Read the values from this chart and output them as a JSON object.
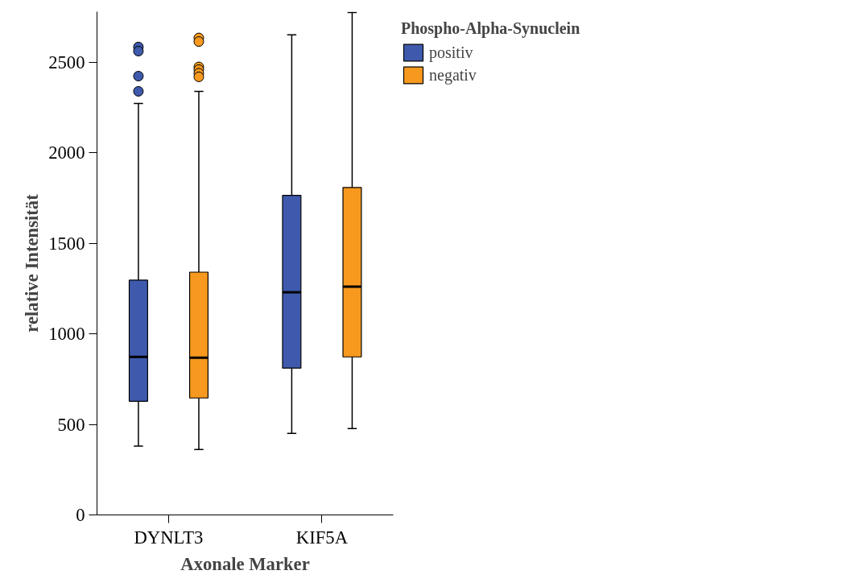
{
  "chart_data": {
    "type": "box",
    "xlabel": "Axonale Marker",
    "ylabel": "relative Intensität",
    "legend_title": "Phospho-Alpha-Synuclein",
    "categories": [
      "DYNLT3",
      "KIF5A"
    ],
    "ylim": [
      0,
      2780
    ],
    "yticks": [
      0,
      500,
      1000,
      1500,
      2000,
      2500
    ],
    "grid": false,
    "legend": "top right",
    "series": [
      {
        "name": "positiv",
        "color": "#3f5aad",
        "boxes": [
          {
            "low": 380,
            "q1": 628,
            "median": 873,
            "q3": 1297,
            "high": 2273,
            "outliers": [
              2585,
              2562,
              2424,
              2340
            ]
          },
          {
            "low": 450,
            "q1": 811,
            "median": 1230,
            "q3": 1765,
            "high": 2652
          }
        ]
      },
      {
        "name": "negativ",
        "color": "#f7991f",
        "boxes": [
          {
            "low": 361,
            "q1": 646,
            "median": 869,
            "q3": 1341,
            "high": 2340,
            "outliers": [
              2635,
              2615,
              2475,
              2460,
              2440,
              2420
            ]
          },
          {
            "low": 477,
            "q1": 873,
            "median": 1261,
            "q3": 1809,
            "high": 2776
          }
        ]
      }
    ]
  }
}
